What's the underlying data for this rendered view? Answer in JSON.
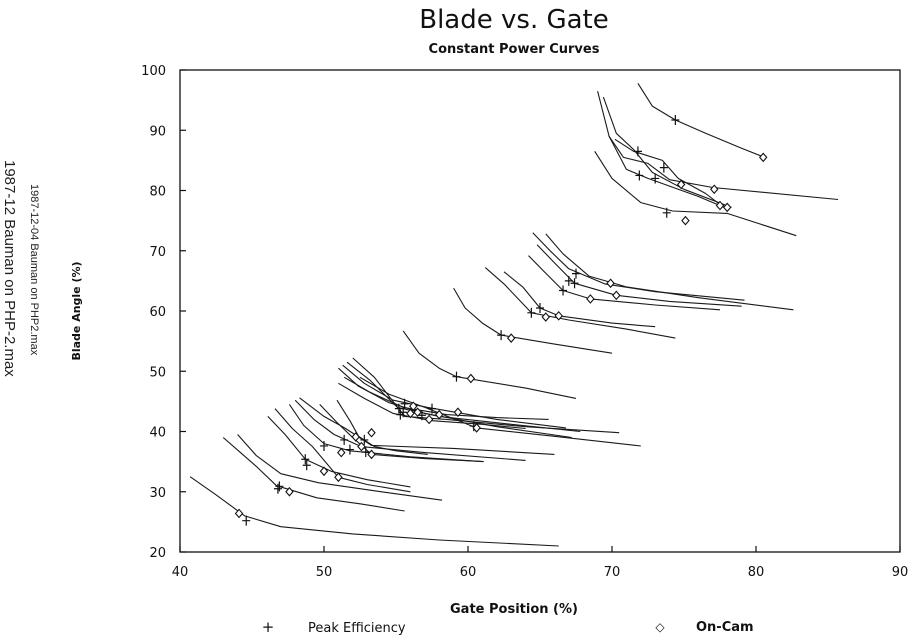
{
  "side_notes": {
    "small": "1987-12-04 Bauman on PHP2.max",
    "large": "1987-12 Bauman on PHP-2.max"
  },
  "chart_data": {
    "type": "line",
    "title": "Blade vs. Gate",
    "subtitle": "Constant Power Curves",
    "xlabel": "Gate Position (%)",
    "ylabel": "Blade Angle (%)",
    "xlim": [
      40,
      90
    ],
    "ylim": [
      20,
      100
    ],
    "xticks": [
      40,
      50,
      60,
      70,
      80,
      90
    ],
    "yticks": [
      20,
      30,
      40,
      50,
      60,
      70,
      80,
      90,
      100
    ],
    "grid": false,
    "legend": [
      {
        "marker": "+",
        "label": "Peak Efficiency"
      },
      {
        "marker": "◇",
        "label": "On-Cam"
      }
    ],
    "series": [
      {
        "name": "curve-1",
        "points": [
          [
            40.7,
            32.5
          ],
          [
            42.5,
            29.5
          ],
          [
            44.5,
            26.0
          ],
          [
            47,
            24.2
          ],
          [
            52,
            23.0
          ],
          [
            58,
            22.0
          ],
          [
            66.3,
            21.0
          ]
        ],
        "peak": [
          44.6,
          25.2
        ],
        "oncam": [
          44.1,
          26.4
        ]
      },
      {
        "name": "curve-2",
        "points": [
          [
            43.0,
            39.0
          ],
          [
            44.2,
            36.5
          ],
          [
            45.3,
            34.2
          ],
          [
            46.7,
            31.0
          ],
          [
            49.5,
            29.0
          ],
          [
            52.5,
            28.0
          ],
          [
            55.6,
            26.8
          ]
        ],
        "peak": [
          46.8,
          30.5
        ],
        "oncam": [
          47.6,
          30.0
        ]
      },
      {
        "name": "curve-3",
        "points": [
          [
            44.0,
            39.5
          ],
          [
            45.3,
            36.0
          ],
          [
            47.0,
            33.0
          ],
          [
            49.6,
            31.5
          ],
          [
            54,
            30.0
          ],
          [
            58.2,
            28.6
          ]
        ],
        "peak": [
          46.9,
          30.9
        ]
      },
      {
        "name": "curve-4",
        "points": [
          [
            46.1,
            42.5
          ],
          [
            47.3,
            39.5
          ],
          [
            48.7,
            35.4
          ],
          [
            50.5,
            33.4
          ],
          [
            53,
            32.0
          ],
          [
            56,
            30.8
          ]
        ],
        "peak": [
          48.7,
          35.4
        ],
        "oncam": [
          50.0,
          33.4
        ]
      },
      {
        "name": "curve-5",
        "points": [
          [
            46.6,
            43.8
          ],
          [
            47.8,
            40.5
          ],
          [
            49.2,
            37.5
          ],
          [
            51.0,
            32.4
          ],
          [
            53,
            31.2
          ],
          [
            56,
            30.0
          ]
        ],
        "peak": [
          48.8,
          34.4
        ],
        "oncam": [
          51.0,
          32.4
        ]
      },
      {
        "name": "curve-6",
        "points": [
          [
            47.6,
            44.5
          ],
          [
            48.6,
            41.0
          ],
          [
            50.0,
            38.0
          ],
          [
            51.8,
            36.8
          ],
          [
            56,
            35.8
          ],
          [
            61.0,
            35.0
          ]
        ],
        "peak": [
          50.0,
          37.6
        ],
        "oncam": [
          51.2,
          36.5
        ]
      },
      {
        "name": "curve-7",
        "points": [
          [
            48.0,
            45.2
          ],
          [
            49.3,
            42.0
          ],
          [
            50.7,
            39.5
          ],
          [
            52.6,
            37.5
          ],
          [
            57,
            36.5
          ],
          [
            64.0,
            35.2
          ]
        ],
        "peak": [
          51.8,
          37.0
        ],
        "oncam": [
          52.6,
          37.5
        ]
      },
      {
        "name": "curve-8",
        "points": [
          [
            48.3,
            45.6
          ],
          [
            50.0,
            42.5
          ],
          [
            51.5,
            40.5
          ],
          [
            53.3,
            37.7
          ],
          [
            59,
            37.2
          ],
          [
            66.0,
            36.2
          ]
        ],
        "peak": [
          51.4,
          38.6
        ],
        "oncam": [
          53.3,
          39.8
        ]
      },
      {
        "name": "curve-9",
        "points": [
          [
            49.7,
            44.5
          ],
          [
            50.9,
            41.5
          ],
          [
            51.9,
            39.2
          ],
          [
            53.3,
            36.2
          ],
          [
            57,
            35.5
          ],
          [
            61.1,
            35.0
          ]
        ],
        "peak": [
          52.9,
          36.6
        ],
        "oncam": [
          53.3,
          36.2
        ]
      },
      {
        "name": "curve-10",
        "points": [
          [
            50.9,
            45.2
          ],
          [
            51.8,
            41.8
          ],
          [
            52.4,
            39.2
          ],
          [
            53.5,
            37.5
          ],
          [
            55,
            36.8
          ],
          [
            57.2,
            36.2
          ]
        ],
        "peak": [
          52.8,
          38.6
        ],
        "oncam": [
          52.2,
          39.1
        ]
      },
      {
        "name": "curve-11",
        "points": [
          [
            51.0,
            50.5
          ],
          [
            52.4,
            47.5
          ],
          [
            54.5,
            44.8
          ],
          [
            57,
            43.0
          ],
          [
            62,
            40.8
          ],
          [
            67.2,
            39.0
          ]
        ],
        "peak": [
          55.2,
          43.8
        ],
        "oncam": [
          56.0,
          43.0
        ]
      },
      {
        "name": "curve-12",
        "points": [
          [
            51.3,
            51.0
          ],
          [
            52.8,
            48.0
          ],
          [
            54.8,
            45.2
          ],
          [
            57.2,
            44.0
          ],
          [
            62,
            42.0
          ],
          [
            66.8,
            40.6
          ]
        ],
        "peak": [
          55.6,
          44.6
        ],
        "oncam": [
          56.2,
          44.2
        ]
      },
      {
        "name": "curve-13",
        "points": [
          [
            51.6,
            51.5
          ],
          [
            53.2,
            48.5
          ],
          [
            55.1,
            44.0
          ],
          [
            58,
            42.5
          ],
          [
            63,
            41.2
          ],
          [
            67.8,
            40.0
          ]
        ],
        "peak": [
          55.5,
          43.2
        ],
        "oncam": [
          56.5,
          43.2
        ]
      },
      {
        "name": "curve-14",
        "points": [
          [
            52.0,
            52.2
          ],
          [
            53.5,
            49.0
          ],
          [
            55.6,
            42.5
          ],
          [
            58.5,
            42.0
          ],
          [
            64,
            40.8
          ],
          [
            70.5,
            39.8
          ]
        ],
        "peak": [
          56.8,
          42.7
        ],
        "oncam": [
          58.0,
          42.8
        ]
      },
      {
        "name": "curve-15",
        "points": [
          [
            51.0,
            48.0
          ],
          [
            52.8,
            45.5
          ],
          [
            54.8,
            43.0
          ],
          [
            57.5,
            41.8
          ],
          [
            61,
            41.2
          ],
          [
            64.0,
            40.5
          ]
        ],
        "peak": [
          55.3,
          42.8
        ],
        "oncam": [
          57.3,
          42.0
        ]
      },
      {
        "name": "curve-16",
        "points": [
          [
            51.4,
            49.0
          ],
          [
            53.2,
            46.5
          ],
          [
            55.5,
            44.0
          ],
          [
            58.5,
            42.8
          ],
          [
            62,
            42.3
          ],
          [
            65.6,
            42.0
          ]
        ],
        "peak": [
          57.5,
          43.8
        ],
        "oncam": [
          59.3,
          43.2
        ]
      },
      {
        "name": "curve-17",
        "points": [
          [
            52.5,
            49.0
          ],
          [
            54.5,
            46.2
          ],
          [
            57.0,
            44.0
          ],
          [
            60.6,
            40.6
          ],
          [
            66,
            39.2
          ],
          [
            72.0,
            37.6
          ]
        ],
        "peak": [
          60.4,
          40.9
        ],
        "oncam": [
          60.6,
          40.6
        ]
      },
      {
        "name": "curve-18",
        "points": [
          [
            55.5,
            56.7
          ],
          [
            56.6,
            53.0
          ],
          [
            58.0,
            50.5
          ],
          [
            59.2,
            49.1
          ],
          [
            64,
            47.2
          ],
          [
            67.5,
            45.5
          ]
        ],
        "peak": [
          59.2,
          49.1
        ],
        "oncam": [
          60.2,
          48.8
        ]
      },
      {
        "name": "curve-19",
        "points": [
          [
            59.0,
            63.8
          ],
          [
            59.8,
            60.5
          ],
          [
            61.0,
            58.0
          ],
          [
            62.3,
            56.0
          ],
          [
            66,
            54.5
          ],
          [
            70.0,
            53.0
          ]
        ],
        "peak": [
          62.3,
          56.0
        ],
        "oncam": [
          63.0,
          55.5
        ]
      },
      {
        "name": "curve-20",
        "points": [
          [
            61.2,
            67.2
          ],
          [
            62.5,
            64.5
          ],
          [
            64.4,
            59.7
          ],
          [
            67,
            58.5
          ],
          [
            71,
            57.0
          ],
          [
            74.4,
            55.5
          ]
        ],
        "peak": [
          64.4,
          59.7
        ],
        "oncam": [
          65.4,
          59.0
        ]
      },
      {
        "name": "curve-21",
        "points": [
          [
            62.5,
            66.5
          ],
          [
            63.8,
            64.0
          ],
          [
            65.0,
            60.5
          ],
          [
            66.3,
            59.2
          ],
          [
            70,
            58.0
          ],
          [
            73.0,
            57.4
          ]
        ],
        "peak": [
          65.0,
          60.5
        ],
        "oncam": [
          66.3,
          59.2
        ]
      },
      {
        "name": "curve-22",
        "points": [
          [
            64.2,
            69.2
          ],
          [
            65.3,
            66.5
          ],
          [
            66.6,
            63.4
          ],
          [
            68.5,
            62.0
          ],
          [
            73,
            61.0
          ],
          [
            77.5,
            60.2
          ]
        ],
        "peak": [
          66.6,
          63.4
        ],
        "oncam": [
          68.5,
          62.0
        ]
      },
      {
        "name": "curve-23",
        "points": [
          [
            64.8,
            71.0
          ],
          [
            66.0,
            68.0
          ],
          [
            67.4,
            64.6
          ],
          [
            70.3,
            62.6
          ],
          [
            74,
            61.6
          ],
          [
            79.0,
            60.8
          ]
        ],
        "peak": [
          67.4,
          64.6
        ],
        "oncam": [
          70.3,
          62.6
        ]
      },
      {
        "name": "curve-24",
        "points": [
          [
            65.4,
            72.8
          ],
          [
            66.6,
            69.5
          ],
          [
            68.4,
            65.8
          ],
          [
            71.0,
            64.0
          ],
          [
            76,
            62.2
          ],
          [
            82.6,
            60.2
          ]
        ],
        "peak": [
          67.5,
          66.2
        ],
        "oncam": [
          69.9,
          64.6
        ]
      },
      {
        "name": "curve-25",
        "points": [
          [
            64.5,
            73.0
          ],
          [
            65.7,
            70.0
          ],
          [
            67.0,
            67.0
          ],
          [
            69.5,
            64.5
          ],
          [
            73,
            63.2
          ],
          [
            79.2,
            61.8
          ]
        ],
        "peak": [
          67.0,
          65.0
        ]
      },
      {
        "name": "curve-26",
        "points": [
          [
            68.8,
            86.5
          ],
          [
            70.0,
            82.0
          ],
          [
            72.0,
            78.0
          ],
          [
            74.2,
            76.6
          ],
          [
            78,
            76.2
          ],
          [
            82.8,
            72.5
          ]
        ],
        "peak": [
          73.8,
          76.3
        ],
        "oncam": [
          75.1,
          75.0
        ]
      },
      {
        "name": "curve-27",
        "points": [
          [
            69.0,
            96.5
          ],
          [
            69.8,
            89.0
          ],
          [
            71.0,
            83.5
          ],
          [
            72.5,
            82.0
          ],
          [
            76,
            79.0
          ],
          [
            78.0,
            77.0
          ]
        ],
        "peak": [
          71.9,
          82.5
        ],
        "oncam": [
          77.5,
          77.5
        ]
      },
      {
        "name": "curve-28",
        "points": [
          [
            69.4,
            95.5
          ],
          [
            70.3,
            89.5
          ],
          [
            71.5,
            86.8
          ],
          [
            72.8,
            83.0
          ],
          [
            75,
            80.2
          ],
          [
            78.3,
            77.2
          ]
        ],
        "peak": [
          73.0,
          82.0
        ],
        "oncam": [
          78.0,
          77.2
        ]
      },
      {
        "name": "curve-29",
        "points": [
          [
            69.8,
            89.0
          ],
          [
            70.8,
            85.5
          ],
          [
            72.5,
            84.5
          ],
          [
            74.0,
            81.8
          ],
          [
            77,
            80.5
          ],
          [
            85.7,
            78.5
          ]
        ],
        "peak": [
          73.6,
          83.8
        ],
        "oncam": [
          77.1,
          80.2
        ]
      },
      {
        "name": "curve-30",
        "points": [
          [
            70.2,
            88.5
          ],
          [
            71.5,
            86.5
          ],
          [
            73.5,
            85.0
          ],
          [
            74.6,
            82.0
          ],
          [
            76.5,
            79.5
          ],
          [
            77.6,
            77.5
          ]
        ],
        "peak": [
          71.8,
          86.5
        ],
        "oncam": [
          74.8,
          81.0
        ]
      },
      {
        "name": "curve-31",
        "points": [
          [
            71.8,
            97.8
          ],
          [
            72.8,
            94.0
          ],
          [
            74.4,
            91.7
          ],
          [
            76.5,
            89.5
          ],
          [
            79,
            87.0
          ],
          [
            80.6,
            85.5
          ]
        ],
        "peak": [
          74.4,
          91.7
        ],
        "oncam": [
          80.5,
          85.5
        ]
      }
    ]
  }
}
